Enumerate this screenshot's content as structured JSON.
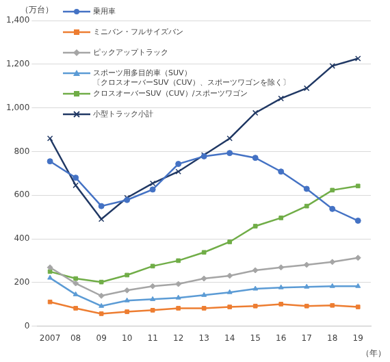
{
  "chart_data": {
    "type": "line",
    "y_label": "（万台）",
    "x_label": "（年）",
    "categories": [
      "2007",
      "08",
      "09",
      "10",
      "11",
      "12",
      "13",
      "14",
      "15",
      "16",
      "17",
      "18",
      "19"
    ],
    "series": [
      {
        "name": "乗用車",
        "color": "#4472c4",
        "marker": "circle",
        "values": [
          755,
          680,
          550,
          578,
          626,
          743,
          778,
          793,
          771,
          708,
          629,
          537,
          483
        ]
      },
      {
        "name": "ミニバン・フルサイズバン",
        "color": "#ed7d31",
        "marker": "square",
        "values": [
          111,
          82,
          57,
          66,
          73,
          82,
          82,
          88,
          92,
          101,
          92,
          95,
          88
        ]
      },
      {
        "name": "ピックアップトラック",
        "color": "#a5a5a5",
        "marker": "diamond",
        "values": [
          269,
          196,
          139,
          164,
          183,
          193,
          218,
          231,
          256,
          269,
          281,
          294,
          313
        ]
      },
      {
        "name": "スポーツ用多目的車（SUV）\n〔クロスオーバーSUV（CUV）、スポーツワゴンを除く〕",
        "color": "#5b9bd5",
        "marker": "triangle",
        "values": [
          221,
          145,
          92,
          117,
          123,
          130,
          142,
          155,
          171,
          177,
          180,
          183,
          183
        ]
      },
      {
        "name": "クロスオーバーSUV（CUV）/スポーツワゴン",
        "color": "#70ad47",
        "marker": "square",
        "values": [
          250,
          218,
          202,
          234,
          275,
          300,
          338,
          386,
          458,
          496,
          550,
          623,
          642
        ]
      },
      {
        "name": "小型トラック小計",
        "color": "#203864",
        "marker": "x",
        "values": [
          860,
          645,
          490,
          588,
          654,
          708,
          784,
          860,
          977,
          1043,
          1090,
          1192,
          1226
        ]
      }
    ],
    "ylim": [
      0,
      1400
    ],
    "yticks": [
      0,
      200,
      400,
      600,
      800,
      {
        "value": 1000,
        "label": "1,000"
      },
      {
        "value": 1200,
        "label": "1,200"
      },
      {
        "value": 1400,
        "label": "1,400"
      }
    ],
    "grid": true,
    "legend": "top-left"
  }
}
